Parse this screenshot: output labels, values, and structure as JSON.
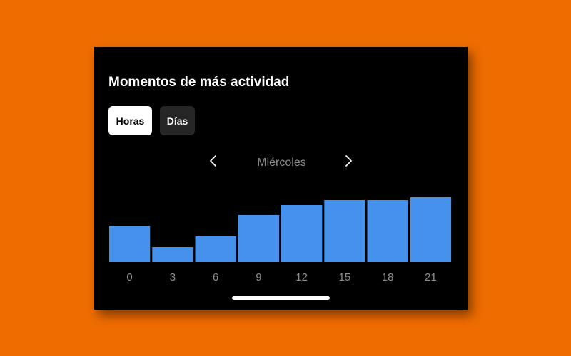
{
  "panel": {
    "title": "Momentos de más actividad",
    "tabs": [
      {
        "label": "Horas",
        "active": true
      },
      {
        "label": "Días",
        "active": false
      }
    ],
    "day_label": "Miércoles",
    "prev_icon": "chevron-left-icon",
    "next_icon": "chevron-right-icon"
  },
  "colors": {
    "background": "#EE6C00",
    "panel": "#000000",
    "bar": "#4591EB",
    "tab_active_bg": "#FFFFFF",
    "tab_inactive_bg": "#262626",
    "tick_label": "#8E8E8E"
  },
  "chart_data": {
    "type": "bar",
    "title": "",
    "xlabel": "",
    "ylabel": "",
    "categories": [
      "0",
      "3",
      "6",
      "9",
      "12",
      "15",
      "18",
      "21"
    ],
    "values": [
      51,
      21,
      36,
      66,
      80,
      87,
      87,
      91
    ],
    "ylim": [
      0,
      100
    ],
    "grid": false,
    "legend": "none"
  }
}
